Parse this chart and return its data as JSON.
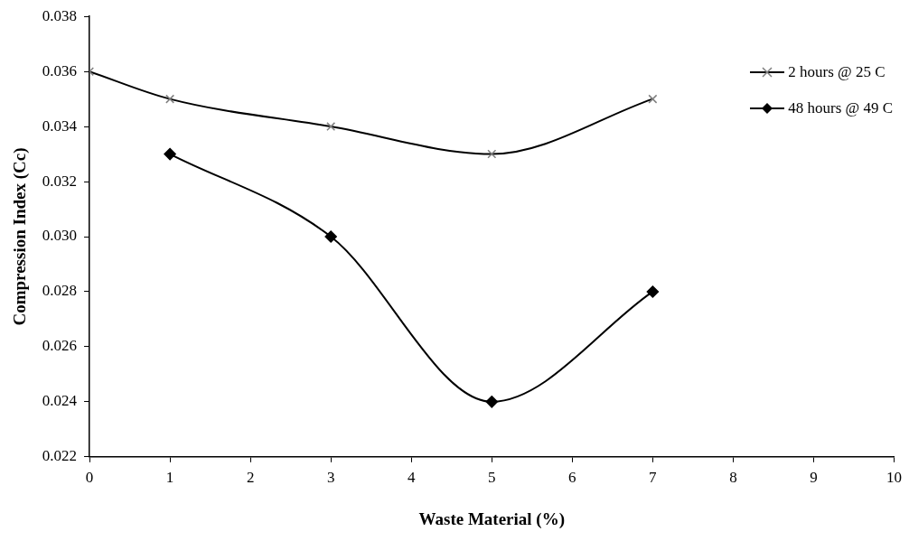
{
  "chart_data": {
    "type": "line",
    "xlabel": "Waste Material (%)",
    "ylabel": "Compression Index (Cc)",
    "xlim": [
      0,
      10
    ],
    "xticks": [
      0,
      1,
      2,
      3,
      4,
      5,
      6,
      7,
      8,
      9,
      10
    ],
    "ylim": [
      0.022,
      0.038
    ],
    "yticks": [
      {
        "value": 0.022,
        "label": "0.022"
      },
      {
        "value": 0.024,
        "label": "0.024"
      },
      {
        "value": 0.026,
        "label": "0.026"
      },
      {
        "value": 0.028,
        "label": "0.028"
      },
      {
        "value": 0.03,
        "label": "0.030"
      },
      {
        "value": 0.032,
        "label": "0.032"
      },
      {
        "value": 0.034,
        "label": "0.034"
      },
      {
        "value": 0.036,
        "label": "0.036"
      },
      {
        "value": 0.038,
        "label": "0.038"
      }
    ],
    "grid": false,
    "legend": "top right",
    "line_style": "solid",
    "series": [
      {
        "name": "2 hours @ 25 C",
        "color": "#000000",
        "marker": "cross",
        "x": [
          0,
          1,
          3,
          5,
          7
        ],
        "values": [
          0.036,
          0.035,
          0.034,
          0.033,
          0.035
        ]
      },
      {
        "name": "48 hours @ 49 C",
        "color": "#000000",
        "marker": "diamond",
        "x": [
          1,
          3,
          5,
          7
        ],
        "values": [
          0.033,
          0.03,
          0.024,
          0.028
        ]
      }
    ]
  }
}
